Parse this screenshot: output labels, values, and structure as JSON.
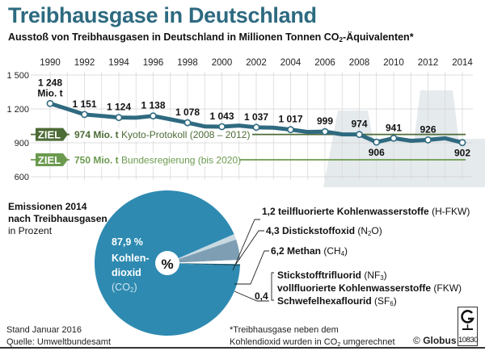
{
  "header": {
    "title": "Treibhausgase in Deutschland",
    "subtitle_pre": "Ausstoß von Treibhausgasen in Deutschland in Millionen Tonnen CO",
    "subtitle_sub": "2",
    "subtitle_post": "-Äquivalenten*"
  },
  "colors": {
    "title": "#2d6a80",
    "line": "#2f6a80",
    "kyoto_target": "#4d6b36",
    "government_target": "#6b9a4e",
    "co2": "#2e8ab1",
    "hfkw": "#c8d9e2",
    "n2o": "#7e9fb3",
    "ch4_gap": "#ffffff",
    "others": "#1c5a70"
  },
  "chart_data": [
    {
      "type": "line",
      "title": "Ausstoß von Treibhausgasen in Deutschland in Millionen Tonnen CO2-Äquivalenten*",
      "xlabel": "",
      "ylabel": "",
      "x_ticks": [
        "1990",
        "1992",
        "1994",
        "1996",
        "1998",
        "2000",
        "2002",
        "2004",
        "2006",
        "2008",
        "2010",
        "2012",
        "2014"
      ],
      "y_ticks": [
        "1 500",
        "1 200",
        "900",
        "600"
      ],
      "y_tick_values": [
        1500,
        1200,
        900,
        600
      ],
      "ylim": [
        600,
        1500
      ],
      "xlim": [
        1990,
        2014
      ],
      "grid": true,
      "series": [
        {
          "name": "Treibhausgasemissionen",
          "x": [
            1990,
            1991,
            1992,
            1993,
            1994,
            1995,
            1996,
            1997,
            1998,
            1999,
            2000,
            2001,
            2002,
            2003,
            2004,
            2005,
            2006,
            2007,
            2008,
            2009,
            2010,
            2011,
            2012,
            2013,
            2014
          ],
          "values": [
            1248,
            1200,
            1151,
            1138,
            1124,
            1122,
            1138,
            1108,
            1078,
            1045,
            1043,
            1053,
            1037,
            1034,
            1017,
            996,
            999,
            975,
            974,
            906,
            941,
            918,
            926,
            940,
            902
          ]
        }
      ],
      "labeled_points": [
        {
          "year": 1990,
          "label": "1 248",
          "unit": "Mio. t"
        },
        {
          "year": 1992,
          "label": "1 151"
        },
        {
          "year": 1994,
          "label": "1 124"
        },
        {
          "year": 1996,
          "label": "1 138"
        },
        {
          "year": 1998,
          "label": "1 078"
        },
        {
          "year": 2000,
          "label": "1 043"
        },
        {
          "year": 2002,
          "label": "1 037"
        },
        {
          "year": 2004,
          "label": "1 017"
        },
        {
          "year": 2006,
          "label": "999"
        },
        {
          "year": 2008,
          "label": "974"
        },
        {
          "year": 2009,
          "label": "906",
          "below": true
        },
        {
          "year": 2010,
          "label": "941"
        },
        {
          "year": 2012,
          "label": "926"
        },
        {
          "year": 2014,
          "label": "902",
          "below": true
        }
      ],
      "targets": [
        {
          "badge": "ZIEL",
          "value": 974,
          "value_label": "974 Mio. t",
          "text": "Kyoto-Protokoll (2008 – 2012)"
        },
        {
          "badge": "ZIEL",
          "value": 750,
          "value_label": "750 Mio. t",
          "text": "Bundesregierung (bis 2020)"
        }
      ]
    },
    {
      "type": "pie",
      "title": "Emissionen 2014 nach Treibhausgasen",
      "unit": "in Prozent",
      "center_label": "%",
      "slices": [
        {
          "name": "Kohlendioxid (CO2)",
          "value": 87.9
        },
        {
          "name": "teilfluorierte Kohlenwasserstoffe (H-FKW)",
          "value": 1.2
        },
        {
          "name": "Distickstoffoxid (N2O)",
          "value": 4.3
        },
        {
          "name": "Methan (CH4)",
          "value": 6.2
        },
        {
          "name": "Stickstofftrifluorid (NF3), vollfluorierte Kohlenwasserstoffe (FKW), Schwefelhexaflourid (SF6)",
          "value": 0.4
        }
      ]
    }
  ],
  "pie": {
    "heading_line1": "Emissionen 2014",
    "heading_line2": "nach Treibhausgasen",
    "heading_unit": "in Prozent",
    "co2_percent": "87,9 %",
    "co2_name_1": "Kohlen-",
    "co2_name_2": "dioxid",
    "co2_formula_pre": "(CO",
    "co2_formula_sub": "2",
    "co2_formula_post": ")",
    "center": "%",
    "legend": {
      "hfkw_bold": "1,2 teilfluorierte Kohlenwasserstoffe",
      "hfkw_plain": " (H-FKW)",
      "n2o_bold": "4,3 Distickstoffoxid",
      "n2o_pre": " (N",
      "n2o_sub": "2",
      "n2o_post": "O)",
      "ch4_bold": "6,2 Methan",
      "ch4_pre": " (CH",
      "ch4_sub": "4",
      "ch4_post": ")",
      "group_value": "0,4",
      "nf3_bold": "Stickstofftrifluorid",
      "nf3_pre": " (NF",
      "nf3_sub": "3",
      "nf3_post": ")",
      "fkw_bold": "vollfluorierte Kohlenwasserstoffe",
      "fkw_plain": " (FKW)",
      "sf6_bold": "Schwefelhexaflourid",
      "sf6_pre": " (SF",
      "sf6_sub": "6",
      "sf6_post": ")"
    }
  },
  "footer": {
    "stand": "Stand Januar 2016",
    "quelle": "Quelle: Umweltbundesamt",
    "footnote_1": "*Treibhausgase neben dem",
    "footnote_2_pre": "Kohlendioxid wurden in CO",
    "footnote_2_sub": "2",
    "footnote_2_post": " umgerechnet",
    "copyright": "© ",
    "brand": "Globus",
    "graphic_number": "10830"
  }
}
